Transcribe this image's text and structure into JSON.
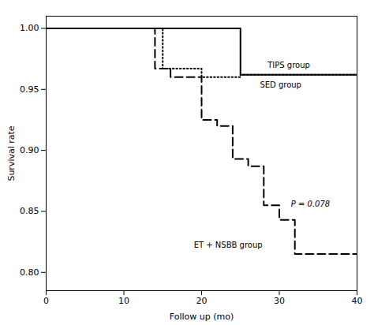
{
  "chart_data": {
    "type": "line",
    "xlabel": "Follow up (mo)",
    "ylabel": "Survival rate",
    "xlim": [
      0,
      40
    ],
    "ylim": [
      0.785,
      1.01
    ],
    "xticks": [
      0,
      10,
      20,
      30,
      40
    ],
    "yticks": [
      {
        "value": 0.8,
        "label": "0.80"
      },
      {
        "value": 0.85,
        "label": "0.85"
      },
      {
        "value": 0.9,
        "label": "0.90"
      },
      {
        "value": 0.95,
        "label": "0.95"
      },
      {
        "value": 1.0,
        "label": "1.00"
      }
    ],
    "grid": false,
    "series": [
      {
        "color": "black",
        "line_style": "solid",
        "x": [
          0,
          25,
          25,
          40
        ],
        "values": [
          1.0,
          1.0,
          0.962,
          0.962
        ]
      },
      {
        "color": "black",
        "line_style": "dotted",
        "x": [
          0,
          15,
          15,
          20,
          20,
          25,
          25,
          40
        ],
        "values": [
          1.0,
          1.0,
          0.967,
          0.967,
          0.96,
          0.96,
          0.962,
          0.962
        ]
      },
      {
        "color": "black",
        "line_style": "dashed",
        "x": [
          0,
          14,
          14,
          16,
          16,
          20,
          20,
          22,
          22,
          24,
          24,
          26,
          26,
          28,
          28,
          30,
          30,
          32,
          32,
          40
        ],
        "values": [
          1.0,
          1.0,
          0.967,
          0.967,
          0.96,
          0.96,
          0.925,
          0.925,
          0.92,
          0.92,
          0.893,
          0.893,
          0.887,
          0.887,
          0.855,
          0.855,
          0.843,
          0.843,
          0.815,
          0.815
        ]
      }
    ],
    "annotations": [
      {
        "text": "TIPS group",
        "x": 28.5,
        "y": 0.9695
      },
      {
        "text": "SED group",
        "x": 27.5,
        "y": 0.9535
      },
      {
        "text": "ET + NSBB group",
        "x": 19.0,
        "y": 0.822
      }
    ],
    "annotation": {
      "text": "P = 0.078",
      "x": 31.5,
      "y": 0.856
    }
  }
}
